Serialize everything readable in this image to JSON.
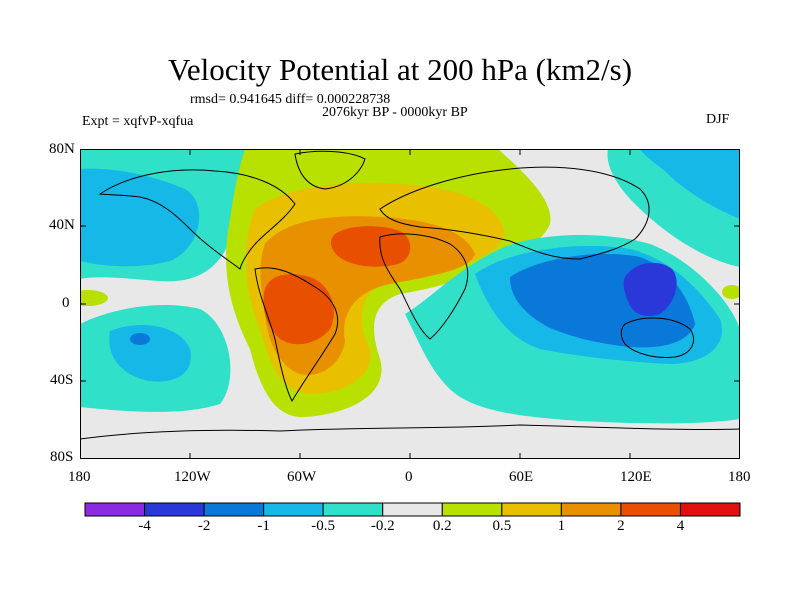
{
  "title": "Velocity Potential at 200 hPa (km2/s)",
  "stats": "rmsd= 0.941645 diff= 0.000228738",
  "period": "2076kyr BP - 0000kyr BP",
  "experiment": "Expt = xqfvP-xqfua",
  "season": "DJF",
  "y_ticks": [
    "80N",
    "40N",
    "0",
    "40S",
    "80S"
  ],
  "x_ticks": [
    "180",
    "120W",
    "60W",
    "0",
    "60E",
    "120E",
    "180"
  ],
  "colorbar": {
    "colors": [
      "#8a2be2",
      "#2a38d8",
      "#0a78d8",
      "#16b8e8",
      "#30e0c8",
      "#e8e8e8",
      "#b8e000",
      "#e8c000",
      "#e89000",
      "#e85000",
      "#e01010"
    ],
    "labels": [
      "-4",
      "-2",
      "-1",
      "-0.5",
      "-0.2",
      "0.2",
      "0.5",
      "1",
      "2",
      "4"
    ]
  },
  "palette": {
    "cyan": "#30e0c8",
    "lightblue": "#16b8e8",
    "blue": "#0a78d8",
    "darkblue": "#2a38d8",
    "neutral": "#e8e8e8",
    "yellowgreen": "#b8e000",
    "yellow": "#e8c000",
    "orange": "#e89000",
    "redorange": "#e85000"
  }
}
